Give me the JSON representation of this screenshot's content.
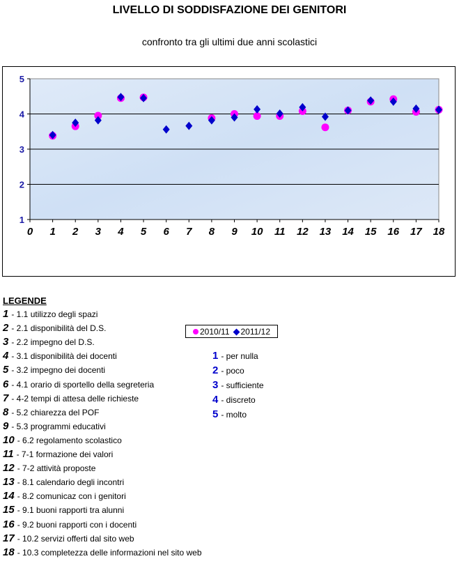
{
  "title": "LIVELLO DI SODDISFAZIONE DEI GENITORI",
  "subtitle": "confronto tra gli ultimi due anni scolastici",
  "chart_data": {
    "type": "scatter",
    "title": "LIVELLO DI SODDISFAZIONE DEI GENITORI",
    "subtitle": "confronto tra gli ultimi due anni scolastici",
    "x": [
      1,
      2,
      3,
      4,
      5,
      6,
      7,
      8,
      9,
      10,
      11,
      12,
      13,
      14,
      15,
      16,
      17,
      18
    ],
    "xlim": [
      0,
      18
    ],
    "ylim": [
      1,
      5
    ],
    "xticks": [
      "0",
      "1",
      "2",
      "3",
      "4",
      "5",
      "6",
      "7",
      "8",
      "9",
      "10",
      "11",
      "12",
      "13",
      "14",
      "15",
      "16",
      "17",
      "18"
    ],
    "yticks": [
      "1",
      "2",
      "3",
      "4",
      "5"
    ],
    "grid": "horizontal",
    "legend_position": "bottom",
    "series": [
      {
        "name": "2010/11",
        "marker": "circle",
        "color": "#ff00ff",
        "values": [
          3.38,
          3.65,
          3.95,
          4.45,
          4.47,
          null,
          null,
          3.88,
          4.0,
          3.94,
          3.94,
          4.08,
          3.62,
          4.1,
          4.35,
          4.42,
          4.06,
          4.12
        ]
      },
      {
        "name": "2011/12",
        "marker": "diamond",
        "color": "#0000cc",
        "values": [
          3.4,
          3.75,
          3.82,
          4.48,
          4.45,
          3.56,
          3.66,
          3.82,
          3.9,
          4.13,
          4.01,
          4.19,
          3.92,
          4.1,
          4.38,
          4.35,
          4.15,
          4.12
        ]
      }
    ]
  },
  "legend": {
    "heading": "LEGENDE",
    "items": [
      {
        "n": "1",
        "t": "- 1.1 utilizzo degli spazi"
      },
      {
        "n": "2",
        "t": "- 2.1 disponibilità del D.S."
      },
      {
        "n": "3",
        "t": "- 2.2 impegno del D.S."
      },
      {
        "n": "4",
        "t": "- 3.1 disponibilità dei docenti"
      },
      {
        "n": "5",
        "t": "- 3.2 impegno dei docenti"
      },
      {
        "n": "6",
        "t": "- 4.1 orario di sportello della segreteria"
      },
      {
        "n": "7",
        "t": "- 4-2 tempi di attesa delle richieste"
      },
      {
        "n": "8",
        "t": "- 5.2 chiarezza del POF"
      },
      {
        "n": "9",
        "t": "- 5.3 programmi educativi"
      },
      {
        "n": "10",
        "t": "- 6.2 regolamento scolastico"
      },
      {
        "n": "11",
        "t": "- 7-1 formazione dei valori"
      },
      {
        "n": "12",
        "t": "- 7-2 attività proposte"
      },
      {
        "n": "13",
        "t": "- 8.1 calendario degli incontri"
      },
      {
        "n": "14",
        "t": "- 8.2 comunicaz con i genitori"
      },
      {
        "n": "15",
        "t": "- 9.1 buoni rapporti tra alunni"
      },
      {
        "n": "16",
        "t": "- 9.2 buoni rapporti con i docenti"
      },
      {
        "n": "17",
        "t": "- 10.2 servizi offerti dal sito web"
      },
      {
        "n": "18",
        "t": "- 10.3 completezza delle informazioni nel sito web"
      }
    ],
    "scale": [
      {
        "n": "1",
        "t": "- per nulla"
      },
      {
        "n": "2",
        "t": "- poco"
      },
      {
        "n": "3",
        "t": "- sufficiente"
      },
      {
        "n": "4",
        "t": "- discreto"
      },
      {
        "n": "5",
        "t": "- molto"
      }
    ]
  }
}
